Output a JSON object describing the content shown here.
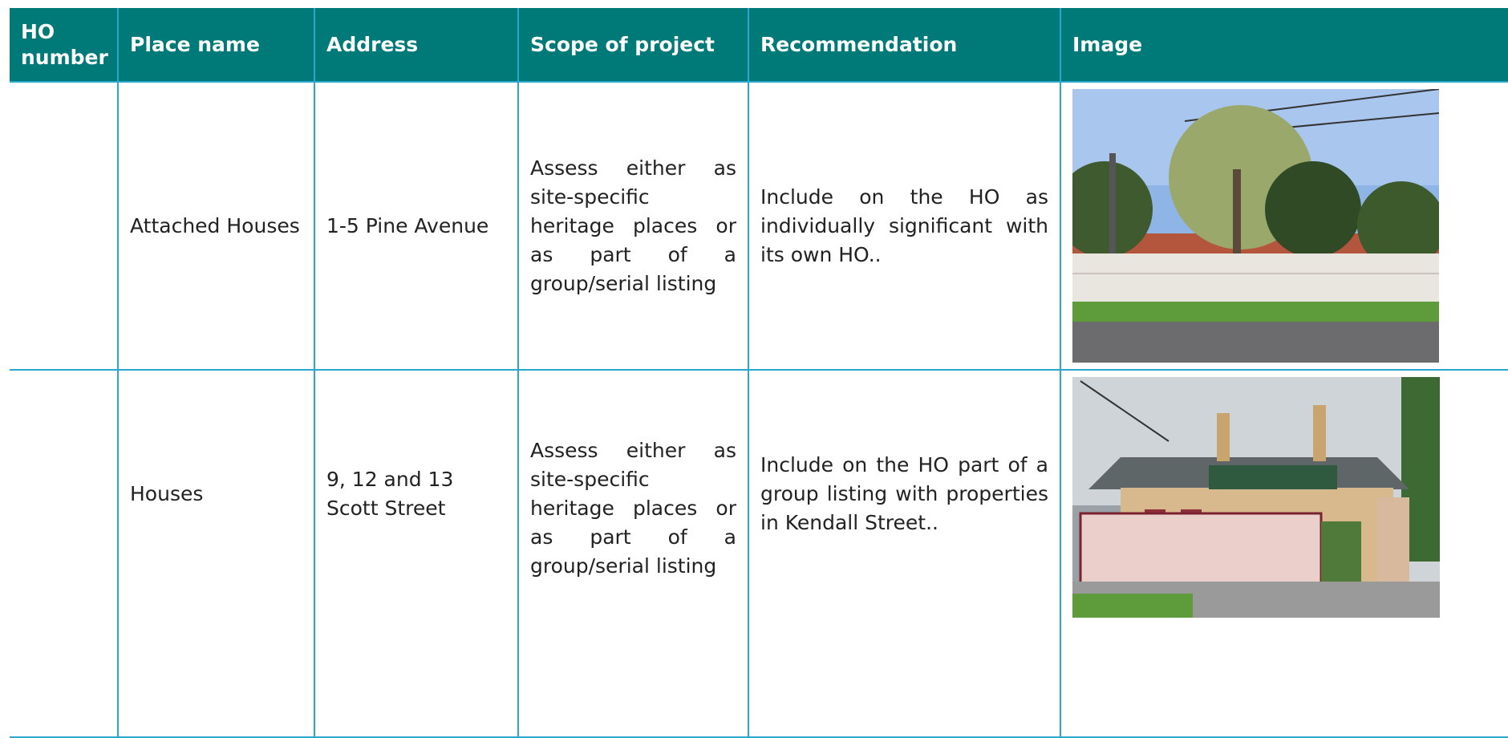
{
  "table": {
    "header": [
      "HO number",
      "Place name",
      "Address",
      "Scope of project",
      "Recommendation",
      "Image"
    ],
    "rows": [
      {
        "place_name": "Attached Houses",
        "address": "1-5 Pine Avenue",
        "scope": "Assess either as site-specific heritage places or as part of a group/serial listing",
        "recommendation": "Include on the HO as individually significant with its own HO.."
      },
      {
        "place_name": "Houses",
        "address": "9, 12 and 13 Scott Street",
        "scope": "Assess either as site-specific heritage places or as part of a group/serial listing",
        "recommendation": "Include on the HO part of a group listing with properties in Kendall Street.."
      }
    ]
  }
}
